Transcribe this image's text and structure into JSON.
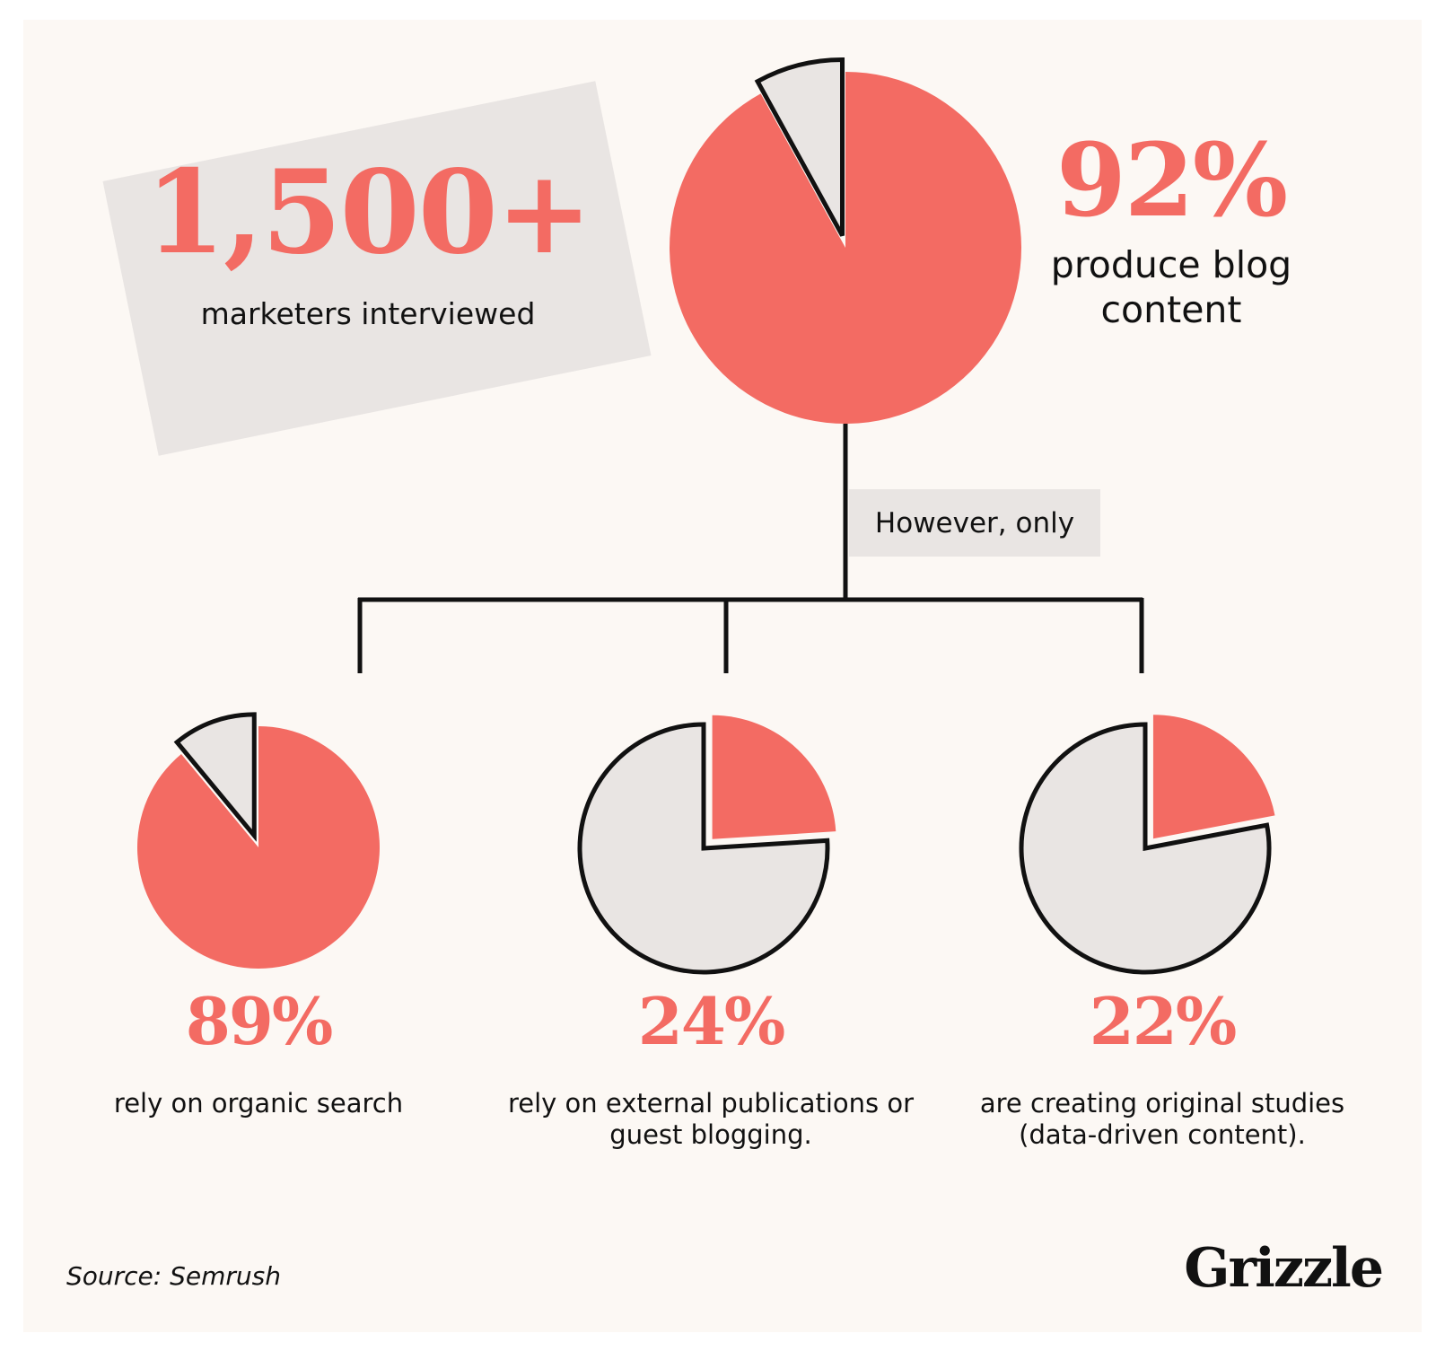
{
  "colors": {
    "accent": "#f36b63",
    "neutral": "#e9e5e3",
    "outline": "#111111",
    "background": "#fcf8f4"
  },
  "headline": {
    "count_value": "1,500+",
    "count_label": "marketers interviewed"
  },
  "connector_note": "However, only",
  "source": "Source: Semrush",
  "brand": "Grizzle",
  "chart_data": [
    {
      "type": "pie",
      "value_label": "92%",
      "description": "produce blog content",
      "slices": [
        {
          "value": 92,
          "color": "#f36b63"
        },
        {
          "value": 8,
          "color": "#e9e5e3"
        }
      ]
    },
    {
      "type": "pie",
      "value_label": "89%",
      "description": "rely on organic search",
      "slices": [
        {
          "value": 89,
          "color": "#f36b63"
        },
        {
          "value": 11,
          "color": "#e9e5e3"
        }
      ]
    },
    {
      "type": "pie",
      "value_label": "24%",
      "description": "rely on external publications or guest blogging.",
      "slices": [
        {
          "value": 24,
          "color": "#f36b63"
        },
        {
          "value": 76,
          "color": "#e9e5e3"
        }
      ]
    },
    {
      "type": "pie",
      "value_label": "22%",
      "description": "are creating original studies (data-driven content).",
      "slices": [
        {
          "value": 22,
          "color": "#f36b63"
        },
        {
          "value": 78,
          "color": "#e9e5e3"
        }
      ]
    }
  ]
}
